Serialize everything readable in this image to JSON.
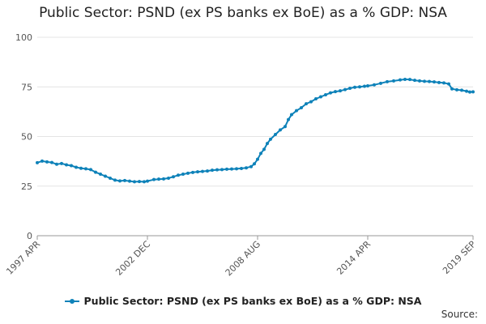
{
  "chart_data": {
    "type": "line",
    "title": "Public Sector: PSND (ex PS banks ex BoE) as a % GDP: NSA",
    "xlabel": "",
    "ylabel": "",
    "ylim": [
      0,
      100
    ],
    "yticks": [
      "0",
      "25",
      "50",
      "75",
      "100"
    ],
    "xlim": [
      "1997-04",
      "2019-09"
    ],
    "xtick_labels": [
      "1997 APR",
      "2002 DEC",
      "2008 AUG",
      "2014 APR",
      "2019 SEP"
    ],
    "xtick_dates": [
      "1997-04",
      "2002-12",
      "2008-08",
      "2014-04",
      "2019-09"
    ],
    "grid": true,
    "legend_position": "bottom",
    "series": [
      {
        "name": "Public Sector: PSND (ex PS banks ex BoE) as a % GDP: NSA",
        "color": "#0e82b9",
        "points": [
          [
            "1997-04",
            36.8
          ],
          [
            "1997-07",
            37.6
          ],
          [
            "1997-10",
            37.2
          ],
          [
            "1998-01",
            36.9
          ],
          [
            "1998-04",
            36.0
          ],
          [
            "1998-07",
            36.4
          ],
          [
            "1998-10",
            35.7
          ],
          [
            "1999-01",
            35.3
          ],
          [
            "1999-04",
            34.5
          ],
          [
            "1999-07",
            34.0
          ],
          [
            "1999-10",
            33.7
          ],
          [
            "2000-01",
            33.3
          ],
          [
            "2000-04",
            32.0
          ],
          [
            "2000-07",
            31.0
          ],
          [
            "2000-10",
            30.0
          ],
          [
            "2001-01",
            29.0
          ],
          [
            "2001-04",
            28.0
          ],
          [
            "2001-07",
            27.6
          ],
          [
            "2001-10",
            27.8
          ],
          [
            "2002-01",
            27.5
          ],
          [
            "2002-04",
            27.2
          ],
          [
            "2002-07",
            27.3
          ],
          [
            "2002-10",
            27.2
          ],
          [
            "2002-12",
            27.5
          ],
          [
            "2003-04",
            28.3
          ],
          [
            "2003-07",
            28.5
          ],
          [
            "2003-10",
            28.6
          ],
          [
            "2004-01",
            29.0
          ],
          [
            "2004-04",
            29.7
          ],
          [
            "2004-07",
            30.5
          ],
          [
            "2004-10",
            31.0
          ],
          [
            "2005-01",
            31.5
          ],
          [
            "2005-04",
            31.9
          ],
          [
            "2005-07",
            32.2
          ],
          [
            "2005-10",
            32.4
          ],
          [
            "2006-01",
            32.6
          ],
          [
            "2006-04",
            33.0
          ],
          [
            "2006-07",
            33.2
          ],
          [
            "2006-10",
            33.3
          ],
          [
            "2007-01",
            33.5
          ],
          [
            "2007-04",
            33.6
          ],
          [
            "2007-07",
            33.7
          ],
          [
            "2007-10",
            33.9
          ],
          [
            "2008-01",
            34.2
          ],
          [
            "2008-04",
            34.8
          ],
          [
            "2008-06",
            36.2
          ],
          [
            "2008-08",
            38.5
          ],
          [
            "2008-10",
            41.5
          ],
          [
            "2008-12",
            43.5
          ],
          [
            "2009-02",
            46.5
          ],
          [
            "2009-04",
            48.6
          ],
          [
            "2009-07",
            51.0
          ],
          [
            "2009-10",
            53.3
          ],
          [
            "2010-01",
            55.0
          ],
          [
            "2010-03",
            58.5
          ],
          [
            "2010-05",
            61.0
          ],
          [
            "2010-08",
            63.0
          ],
          [
            "2010-11",
            64.5
          ],
          [
            "2011-02",
            66.5
          ],
          [
            "2011-05",
            67.5
          ],
          [
            "2011-08",
            69.0
          ],
          [
            "2011-11",
            70.0
          ],
          [
            "2012-02",
            71.0
          ],
          [
            "2012-05",
            72.0
          ],
          [
            "2012-08",
            72.6
          ],
          [
            "2012-11",
            73.0
          ],
          [
            "2013-02",
            73.6
          ],
          [
            "2013-05",
            74.3
          ],
          [
            "2013-08",
            74.8
          ],
          [
            "2013-11",
            75.0
          ],
          [
            "2014-02",
            75.3
          ],
          [
            "2014-04",
            75.5
          ],
          [
            "2014-08",
            76.0
          ],
          [
            "2014-12",
            76.8
          ],
          [
            "2015-04",
            77.6
          ],
          [
            "2015-08",
            78.0
          ],
          [
            "2015-12",
            78.5
          ],
          [
            "2016-03",
            78.8
          ],
          [
            "2016-06",
            78.7
          ],
          [
            "2016-09",
            78.3
          ],
          [
            "2016-12",
            78.0
          ],
          [
            "2017-03",
            77.8
          ],
          [
            "2017-06",
            77.7
          ],
          [
            "2017-09",
            77.5
          ],
          [
            "2017-12",
            77.2
          ],
          [
            "2018-03",
            77.0
          ],
          [
            "2018-06",
            76.5
          ],
          [
            "2018-08",
            74.0
          ],
          [
            "2018-11",
            73.5
          ],
          [
            "2019-02",
            73.3
          ],
          [
            "2019-05",
            72.8
          ],
          [
            "2019-07",
            72.4
          ],
          [
            "2019-09",
            72.5
          ]
        ]
      }
    ],
    "legend_label": "Public Sector: PSND (ex PS banks ex BoE) as a % GDP: NSA",
    "source_label": "Source:"
  }
}
